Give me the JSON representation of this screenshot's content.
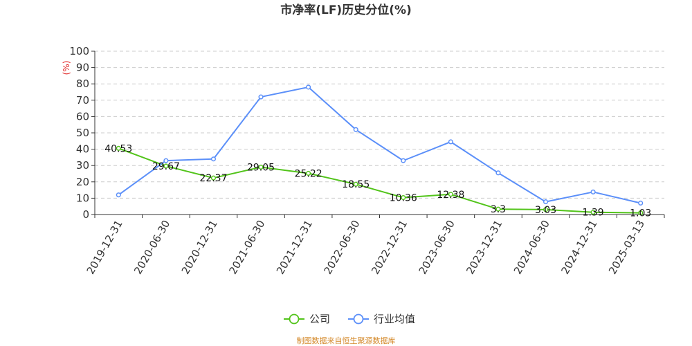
{
  "chart_data": {
    "type": "line",
    "title": "市净率(LF)历史分位(%)",
    "ylabel": "(%)",
    "ylim": [
      0,
      100
    ],
    "yticks": [
      0,
      10,
      20,
      30,
      40,
      50,
      60,
      70,
      80,
      90,
      100
    ],
    "grid": true,
    "legend_position": "bottom",
    "categories": [
      "2019-12-31",
      "2020-06-30",
      "2020-12-31",
      "2021-06-30",
      "2021-12-31",
      "2022-06-30",
      "2022-12-31",
      "2023-06-30",
      "2023-12-31",
      "2024-06-30",
      "2024-12-31",
      "2025-03-13"
    ],
    "series": [
      {
        "name": "公司",
        "color": "#52c41a",
        "values": [
          40.53,
          29.67,
          22.37,
          29.05,
          25.22,
          18.55,
          10.36,
          12.38,
          3.3,
          3.03,
          1.39,
          1.03
        ],
        "labels": [
          "40.53",
          "29.67",
          "22.37",
          "29.05",
          "25.22",
          "18.55",
          "10.36",
          "12.38",
          "3.3",
          "3.03",
          "1.39",
          "1.03"
        ]
      },
      {
        "name": "行业均值",
        "color": "#5b8ff9",
        "values": [
          12,
          33,
          34,
          72,
          78,
          52,
          33,
          44.5,
          25.5,
          7.8,
          13.8,
          7
        ]
      }
    ],
    "source": "制图数据来自恒生聚源数据库"
  }
}
